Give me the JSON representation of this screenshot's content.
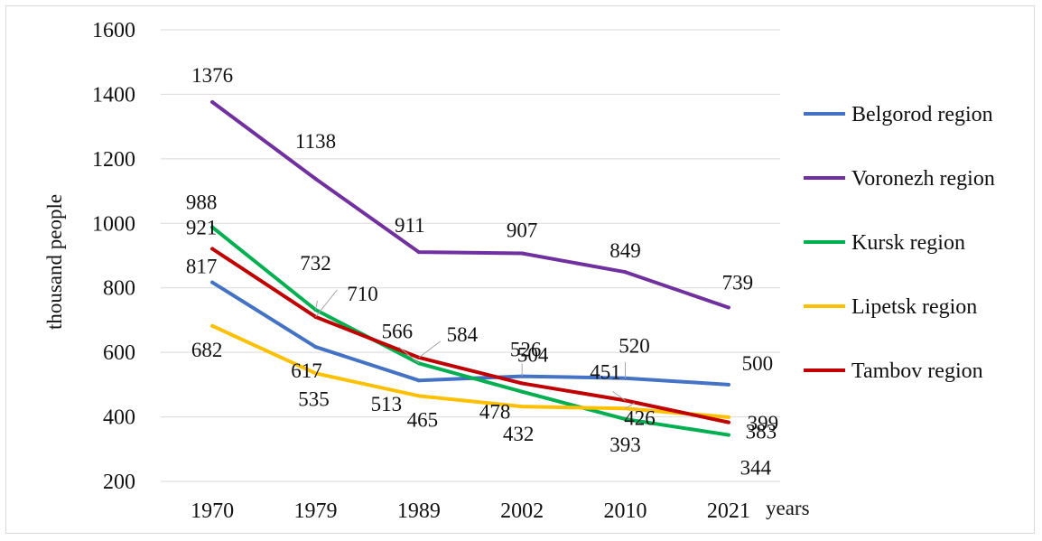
{
  "chart_data": {
    "type": "line",
    "title": "",
    "xlabel": "years",
    "ylabel": "thousand people",
    "categories": [
      "1970",
      "1979",
      "1989",
      "2002",
      "2010",
      "2021"
    ],
    "ylim": [
      200,
      1600
    ],
    "yticks": [
      200,
      400,
      600,
      800,
      1000,
      1200,
      1400,
      1600
    ],
    "grid": "horizontal",
    "legend_position": "right",
    "series": [
      {
        "name": "Belgorod region",
        "color": "#4472C4",
        "values": [
          817,
          617,
          513,
          526,
          520,
          500
        ]
      },
      {
        "name": "Voronezh region",
        "color": "#7030A0",
        "values": [
          1376,
          1138,
          911,
          907,
          849,
          739
        ]
      },
      {
        "name": "Kursk region",
        "color": "#00B050",
        "values": [
          988,
          732,
          566,
          478,
          393,
          344
        ]
      },
      {
        "name": "Lipetsk region",
        "color": "#FFC000",
        "values": [
          682,
          535,
          465,
          432,
          426,
          399
        ]
      },
      {
        "name": "Tambov region",
        "color": "#C00000",
        "values": [
          921,
          710,
          584,
          504,
          451,
          383
        ]
      }
    ]
  }
}
